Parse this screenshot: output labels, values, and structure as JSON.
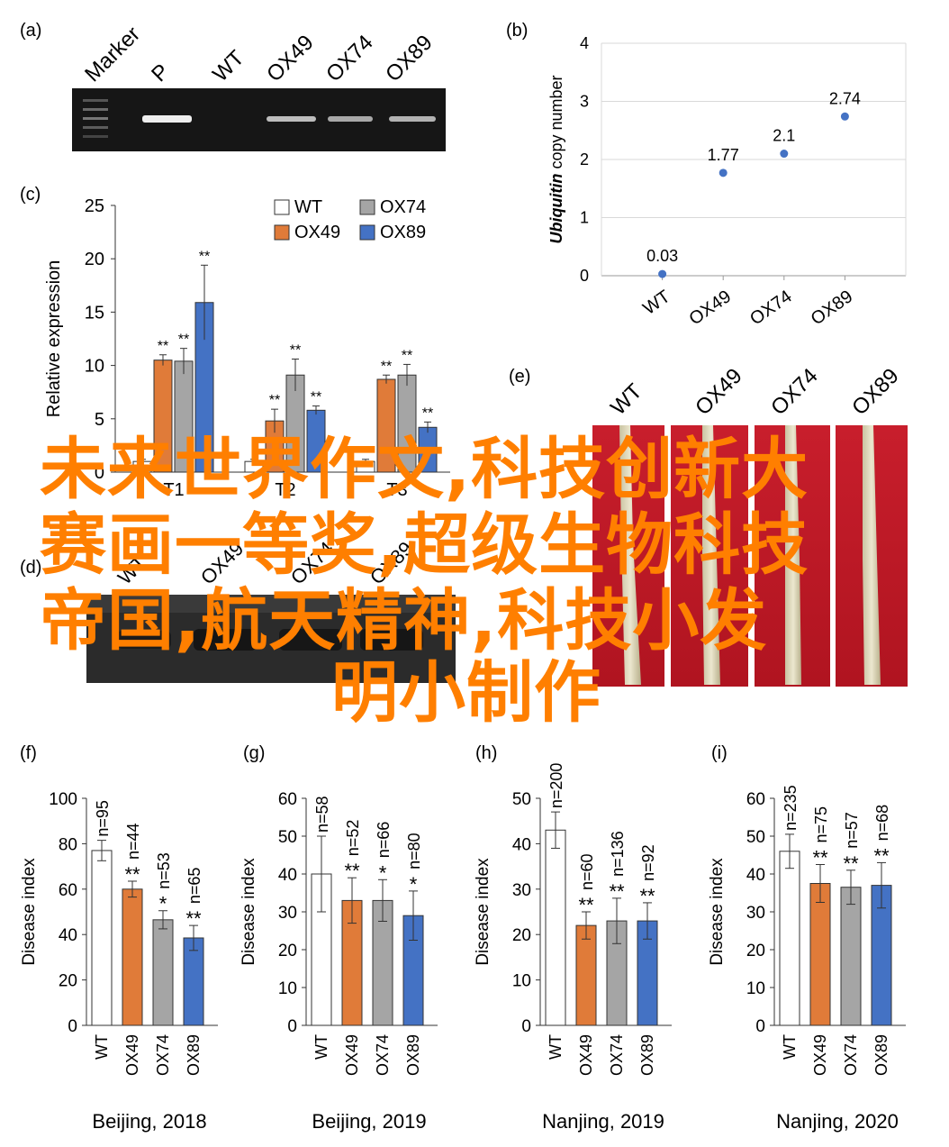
{
  "panel_labels": [
    "(a)",
    "(b)",
    "(c)",
    "(d)",
    "(e)",
    "(f)",
    "(g)",
    "(h)",
    "(i)"
  ],
  "gel_a": {
    "lanes": [
      "Marker",
      "P",
      "WT",
      "OX49",
      "OX74",
      "OX89"
    ]
  },
  "gel_d": {
    "lanes": [
      "WT",
      "OX49",
      "OX74",
      "OX89"
    ]
  },
  "photo_e": {
    "labels": [
      "WT",
      "OX49",
      "OX74",
      "OX89"
    ]
  },
  "overlay_text": [
    "未来世界作文,科技创新大",
    "赛画一等奖,超级生物科技",
    "帝国,航天精神,科技小发",
    "明小制作"
  ],
  "colors": {
    "WT": "#ffffff",
    "OX49": "#e07b39",
    "OX74": "#a5a5a5",
    "OX89": "#4472c4",
    "scatter": "#4472c4",
    "overlay": "#ff7f00"
  },
  "chart_data": [
    {
      "panel": "(b)",
      "type": "scatter",
      "categories": [
        "WT",
        "OX49",
        "OX74",
        "OX89"
      ],
      "values": [
        0.03,
        1.77,
        2.1,
        2.74
      ],
      "data_labels": [
        "0.03",
        "1.77",
        "2.1",
        "2.74"
      ],
      "ylabel_italic": "Ubiquitin",
      "ylabel_rest": " copy number",
      "ylim": [
        0,
        4
      ],
      "yticks": [
        "0",
        "1",
        "2",
        "3",
        "4"
      ],
      "grid": true
    },
    {
      "panel": "(c)",
      "type": "bar",
      "categories": [
        "T1",
        "T2",
        "T3"
      ],
      "series": [
        {
          "name": "WT",
          "values": [
            1,
            1,
            1
          ],
          "errors": [
            0.2,
            0.2,
            0.2
          ],
          "marks": [
            "",
            "",
            ""
          ]
        },
        {
          "name": "OX49",
          "values": [
            10.5,
            4.8,
            8.7
          ],
          "errors": [
            0.5,
            1.1,
            0.4
          ],
          "marks": [
            "**",
            "**",
            "**"
          ]
        },
        {
          "name": "OX74",
          "values": [
            10.4,
            9.1,
            9.1
          ],
          "errors": [
            1.2,
            1.5,
            1.0
          ],
          "marks": [
            "**",
            "**",
            "**"
          ]
        },
        {
          "name": "OX89",
          "values": [
            15.9,
            5.8,
            4.2
          ],
          "errors": [
            3.5,
            0.4,
            0.5
          ],
          "marks": [
            "**",
            "**",
            "**"
          ]
        }
      ],
      "ylabel": "Relative expression",
      "ylim": [
        0,
        25
      ],
      "yticks": [
        "0",
        "5",
        "10",
        "15",
        "20",
        "25"
      ],
      "legend": "top-right"
    },
    {
      "panel": "(f)",
      "type": "bar",
      "xlabel": "Beijing, 2018",
      "categories": [
        "WT",
        "OX49",
        "OX74",
        "OX89"
      ],
      "values": [
        77,
        60,
        46.5,
        38.5
      ],
      "errors": [
        4.5,
        3.5,
        4,
        5.5
      ],
      "n_labels": [
        "n=95",
        "n=44",
        "n=53",
        "n=65"
      ],
      "marks": [
        "",
        "**",
        "*",
        "**"
      ],
      "ylabel": "Disease index",
      "ylim": [
        0,
        100
      ],
      "yticks": [
        "0",
        "20",
        "40",
        "60",
        "80",
        "100"
      ]
    },
    {
      "panel": "(g)",
      "type": "bar",
      "xlabel": "Beijing, 2019",
      "categories": [
        "WT",
        "OX49",
        "OX74",
        "OX89"
      ],
      "values": [
        40,
        33,
        33,
        29
      ],
      "errors": [
        10,
        6,
        5.5,
        6.5
      ],
      "n_labels": [
        "n=58",
        "n=52",
        "n=66",
        "n=80"
      ],
      "marks": [
        "",
        "**",
        "*",
        "*"
      ],
      "ylabel": "Disease index",
      "ylim": [
        0,
        60
      ],
      "yticks": [
        "0",
        "10",
        "20",
        "30",
        "40",
        "50",
        "60"
      ]
    },
    {
      "panel": "(h)",
      "type": "bar",
      "xlabel": "Nanjing, 2019",
      "categories": [
        "WT",
        "OX49",
        "OX74",
        "OX89"
      ],
      "values": [
        43,
        22,
        23,
        23
      ],
      "errors": [
        4,
        3,
        5,
        4
      ],
      "n_labels": [
        "n=200",
        "n=60",
        "n=136",
        "n=92"
      ],
      "marks": [
        "",
        "**",
        "**",
        "**"
      ],
      "ylabel": "Disease index",
      "ylim": [
        0,
        50
      ],
      "yticks": [
        "0",
        "10",
        "20",
        "30",
        "40",
        "50"
      ]
    },
    {
      "panel": "(i)",
      "type": "bar",
      "xlabel": "Nanjing, 2020",
      "categories": [
        "WT",
        "OX49",
        "OX74",
        "OX89"
      ],
      "values": [
        46,
        37.5,
        36.5,
        37
      ],
      "errors": [
        4.5,
        5,
        4.5,
        6
      ],
      "n_labels": [
        "n=235",
        "n=75",
        "n=57",
        "n=68"
      ],
      "marks": [
        "",
        "**",
        "**",
        "**"
      ],
      "ylabel": "Disease index",
      "ylim": [
        0,
        60
      ],
      "yticks": [
        "0",
        "10",
        "20",
        "30",
        "40",
        "50",
        "60"
      ]
    }
  ]
}
